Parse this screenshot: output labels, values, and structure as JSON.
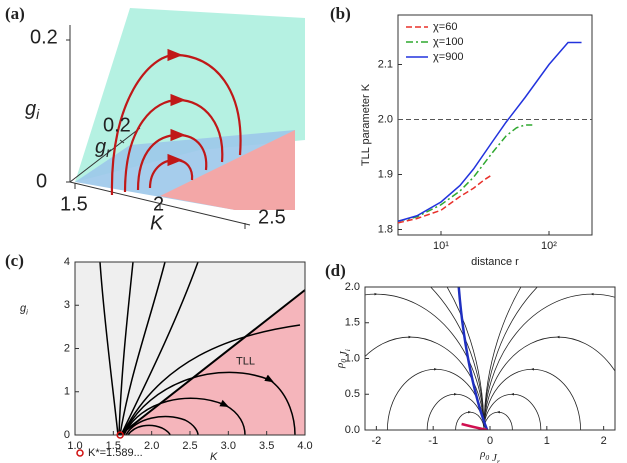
{
  "chart_data": [
    {
      "type": "flow3d",
      "panel": "(a)",
      "zlabel": {
        "text": "g",
        "sub": "i"
      },
      "ylabel": {
        "text": "g",
        "sub": "r"
      },
      "xlabel": "K",
      "zticks": [
        0,
        0.2
      ],
      "yticks": [
        0.2
      ],
      "xticks": [
        1.5,
        2,
        2.5
      ]
    },
    {
      "type": "line",
      "panel": "(b)",
      "ylabel": "TLL parameter  K",
      "xlabel": "distance  r",
      "xscale": "log",
      "xlim": [
        4,
        250
      ],
      "ylim": [
        1.79,
        2.19
      ],
      "xticks": [
        {
          "value": 10,
          "label": "10¹"
        },
        {
          "value": 100,
          "label": "10²"
        }
      ],
      "yticks": [
        1.8,
        1.9,
        {
          "value": 2,
          "label": "2.0"
        },
        2.1
      ],
      "hline": 2,
      "legend": "upper left",
      "series": [
        {
          "name": "χ=60",
          "color": "#e8302a",
          "dash": "dashed",
          "x": [
            4,
            6,
            10,
            15,
            20,
            25,
            30
          ],
          "values": [
            1.812,
            1.82,
            1.835,
            1.86,
            1.875,
            1.89,
            1.9
          ]
        },
        {
          "name": "χ=100",
          "color": "#2fa82f",
          "dash": "dashdot",
          "x": [
            4,
            6,
            10,
            15,
            20,
            30,
            40,
            50,
            60,
            70
          ],
          "values": [
            1.815,
            1.823,
            1.845,
            1.87,
            1.895,
            1.94,
            1.97,
            1.985,
            1.99,
            1.99
          ]
        },
        {
          "name": "χ=900",
          "color": "#2233dd",
          "dash": "solid",
          "x": [
            4,
            6,
            10,
            15,
            20,
            30,
            40,
            60,
            100,
            150,
            200
          ],
          "values": [
            1.815,
            1.825,
            1.85,
            1.88,
            1.91,
            1.96,
            1.995,
            2.04,
            2.1,
            2.14,
            2.14
          ]
        }
      ]
    },
    {
      "type": "flow",
      "panel": "(c)",
      "xlabel": "K",
      "ylabel": {
        "text": "g",
        "sub": "i"
      },
      "xlim": [
        1,
        4
      ],
      "ylim": [
        0,
        4
      ],
      "xticks": [
        {
          "value": 1,
          "label": "1.0"
        },
        {
          "value": 1.5,
          "label": "1.5"
        },
        {
          "value": 2,
          "label": "2.0"
        },
        {
          "value": 2.5,
          "label": "2.5"
        },
        {
          "value": 3,
          "label": "3.0"
        },
        {
          "value": 3.5,
          "label": "3.5"
        },
        {
          "value": 4,
          "label": "4.0"
        }
      ],
      "yticks": [
        0,
        1,
        2,
        3,
        4
      ],
      "annotation": "TLL",
      "fixed_point": {
        "x": 1.589,
        "label": "K*=1.589..."
      }
    },
    {
      "type": "flow",
      "panel": "(d)",
      "xlabel": [
        {
          "text": "ρ",
          "sub": "0"
        },
        {
          "text": " J",
          "sub": "r"
        }
      ],
      "ylabel": [
        {
          "text": "ρ",
          "sub": "0"
        },
        {
          "text": " J",
          "sub": "i"
        }
      ],
      "xlim": [
        -2.2,
        2.2
      ],
      "ylim": [
        0,
        2
      ],
      "xticks": [
        -2,
        -1,
        0,
        1,
        2
      ],
      "yticks": [
        {
          "value": 0,
          "label": "0.0"
        },
        {
          "value": 0.5,
          "label": "0.5"
        },
        {
          "value": 1,
          "label": "1.0"
        },
        {
          "value": 1.5,
          "label": "1.5"
        },
        {
          "value": 2,
          "label": "2.0"
        }
      ]
    }
  ]
}
